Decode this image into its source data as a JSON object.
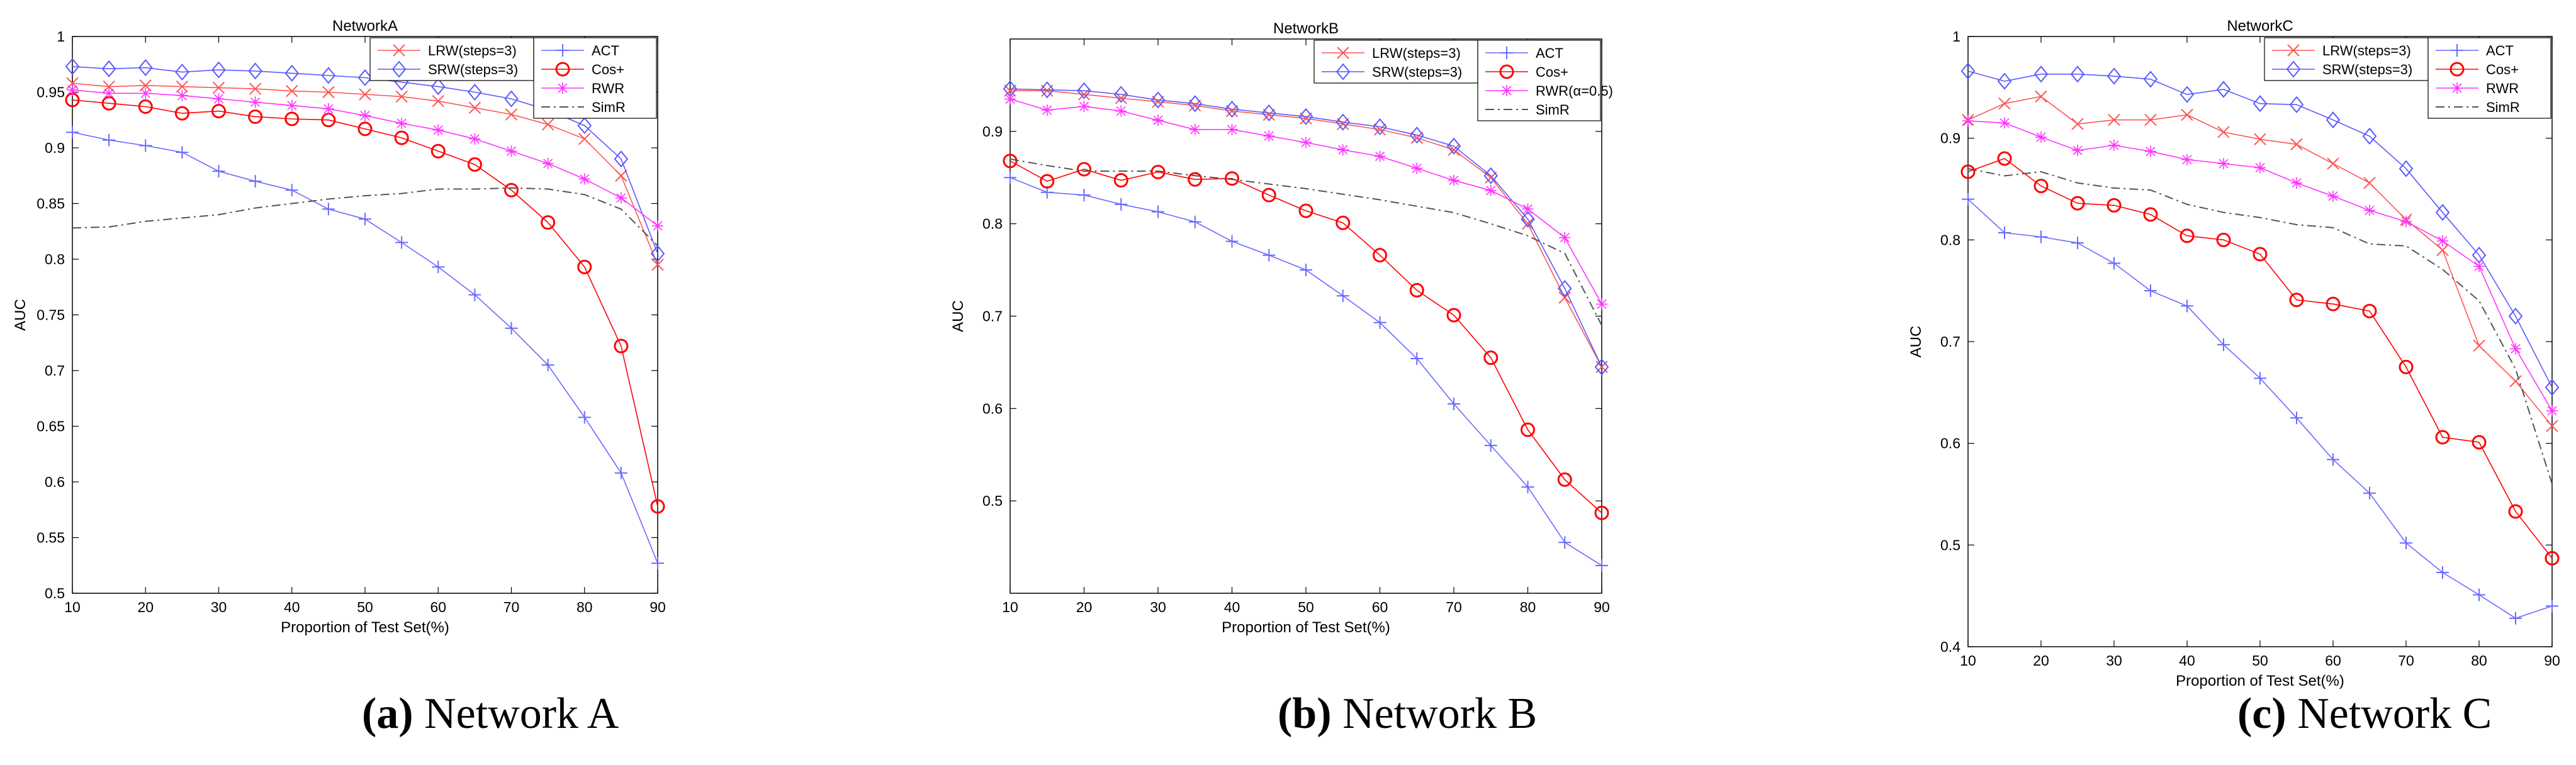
{
  "figure": {
    "captions": [
      {
        "label": "(a)",
        "text": "Network A"
      },
      {
        "label": "(b)",
        "text": "Network B"
      },
      {
        "label": "(c)",
        "text": "Network C"
      }
    ]
  },
  "colors": {
    "LRW": "#ff5555",
    "SRW": "#5a5aff",
    "ACT": "#6a6aff",
    "Cos+": "#ff0000",
    "RWR": "#ff33ff",
    "SimR": "#555555"
  },
  "chart_data": [
    {
      "type": "line",
      "title": "NetworkA",
      "xlabel": "Proportion of Test Set(%)",
      "ylabel": "AUC",
      "x": [
        10,
        15,
        20,
        25,
        30,
        35,
        40,
        45,
        50,
        55,
        60,
        65,
        70,
        75,
        80,
        85,
        90
      ],
      "xticks": [
        10,
        20,
        30,
        40,
        50,
        60,
        70,
        80,
        90
      ],
      "xlim": [
        10,
        90
      ],
      "ylim": [
        0.5,
        1
      ],
      "yticks": [
        0.5,
        0.55,
        0.6,
        0.65,
        0.7,
        0.75,
        0.8,
        0.85,
        0.9,
        0.95,
        1
      ],
      "legend_left": [
        "LRW(steps=3)",
        "SRW(steps=3)"
      ],
      "legend_right": [
        "ACT",
        "Cos+",
        "RWR",
        "SimR"
      ],
      "series": [
        {
          "name": "LRW(steps=3)",
          "marker": "x",
          "values": [
            0.958,
            0.955,
            0.956,
            0.955,
            0.954,
            0.953,
            0.951,
            0.95,
            0.948,
            0.946,
            0.942,
            0.936,
            0.93,
            0.921,
            0.908,
            0.875,
            0.795
          ]
        },
        {
          "name": "SRW(steps=3)",
          "marker": "diamond",
          "values": [
            0.973,
            0.971,
            0.972,
            0.968,
            0.97,
            0.969,
            0.967,
            0.965,
            0.963,
            0.959,
            0.955,
            0.95,
            0.944,
            0.934,
            0.92,
            0.89,
            0.805
          ]
        },
        {
          "name": "ACT",
          "marker": "plus",
          "values": [
            0.914,
            0.907,
            0.902,
            0.896,
            0.879,
            0.87,
            0.862,
            0.845,
            0.836,
            0.815,
            0.793,
            0.768,
            0.738,
            0.705,
            0.658,
            0.608,
            0.527
          ]
        },
        {
          "name": "Cos+",
          "marker": "circle",
          "values": [
            0.943,
            0.94,
            0.937,
            0.931,
            0.933,
            0.928,
            0.926,
            0.925,
            0.917,
            0.909,
            0.897,
            0.885,
            0.862,
            0.833,
            0.793,
            0.722,
            0.578
          ]
        },
        {
          "name": "RWR",
          "marker": "star",
          "values": [
            0.952,
            0.949,
            0.949,
            0.947,
            0.944,
            0.941,
            0.938,
            0.935,
            0.929,
            0.922,
            0.916,
            0.908,
            0.897,
            0.886,
            0.872,
            0.855,
            0.83
          ]
        },
        {
          "name": "SimR",
          "marker": "none",
          "dash": "dashdot",
          "values": [
            0.828,
            0.829,
            0.834,
            0.837,
            0.84,
            0.846,
            0.85,
            0.854,
            0.857,
            0.859,
            0.863,
            0.863,
            0.864,
            0.863,
            0.858,
            0.845,
            0.812
          ]
        }
      ]
    },
    {
      "type": "line",
      "title": "NetworkB",
      "xlabel": "Proportion of Test Set(%)",
      "ylabel": "AUC",
      "x": [
        10,
        15,
        20,
        25,
        30,
        35,
        40,
        45,
        50,
        55,
        60,
        65,
        70,
        75,
        80,
        85,
        90
      ],
      "xticks": [
        10,
        20,
        30,
        40,
        50,
        60,
        70,
        80,
        90
      ],
      "xlim": [
        10,
        90
      ],
      "ylim": [
        0.4,
        1
      ],
      "yticks": [
        0.5,
        0.6,
        0.7,
        0.8,
        0.9
      ],
      "legend_left": [
        "LRW(steps=3)",
        "SRW(steps=3)"
      ],
      "legend_right": [
        "ACT",
        "Cos+",
        "RWR(α=0.5)",
        "SimR"
      ],
      "series": [
        {
          "name": "LRW(steps=3)",
          "marker": "x",
          "values": [
            0.944,
            0.944,
            0.94,
            0.936,
            0.932,
            0.928,
            0.922,
            0.918,
            0.914,
            0.908,
            0.902,
            0.893,
            0.88,
            0.85,
            0.8,
            0.72,
            0.645
          ]
        },
        {
          "name": "SRW(steps=3)",
          "marker": "diamond",
          "values": [
            0.946,
            0.945,
            0.944,
            0.94,
            0.934,
            0.93,
            0.924,
            0.92,
            0.916,
            0.91,
            0.905,
            0.896,
            0.884,
            0.852,
            0.805,
            0.73,
            0.645
          ]
        },
        {
          "name": "ACT",
          "marker": "plus",
          "values": [
            0.85,
            0.834,
            0.831,
            0.821,
            0.813,
            0.802,
            0.781,
            0.766,
            0.75,
            0.722,
            0.693,
            0.654,
            0.605,
            0.56,
            0.515,
            0.455,
            0.43
          ]
        },
        {
          "name": "Cos+",
          "marker": "circle",
          "values": [
            0.868,
            0.846,
            0.859,
            0.847,
            0.856,
            0.848,
            0.849,
            0.831,
            0.814,
            0.801,
            0.766,
            0.728,
            0.701,
            0.655,
            0.577,
            0.523,
            0.487
          ]
        },
        {
          "name": "RWR(α=0.5)",
          "marker": "star",
          "values": [
            0.935,
            0.923,
            0.927,
            0.922,
            0.912,
            0.902,
            0.902,
            0.895,
            0.888,
            0.88,
            0.873,
            0.86,
            0.847,
            0.836,
            0.816,
            0.785,
            0.713
          ]
        },
        {
          "name": "SimR",
          "marker": "none",
          "dash": "dashdot",
          "values": [
            0.87,
            0.863,
            0.857,
            0.857,
            0.857,
            0.852,
            0.848,
            0.843,
            0.838,
            0.832,
            0.826,
            0.819,
            0.812,
            0.8,
            0.787,
            0.768,
            0.69
          ]
        }
      ]
    },
    {
      "type": "line",
      "title": "NetworkC",
      "xlabel": "Proportion of Test Set(%)",
      "ylabel": "AUC",
      "x": [
        10,
        15,
        20,
        25,
        30,
        35,
        40,
        45,
        50,
        55,
        60,
        65,
        70,
        75,
        80,
        85,
        90
      ],
      "xticks": [
        10,
        20,
        30,
        40,
        50,
        60,
        70,
        80,
        90
      ],
      "xlim": [
        10,
        90
      ],
      "ylim": [
        0.4,
        1
      ],
      "yticks": [
        0.4,
        0.5,
        0.6,
        0.7,
        0.8,
        0.9,
        1
      ],
      "legend_left": [
        "LRW(steps=3)",
        "SRW(steps=3)"
      ],
      "legend_right": [
        "ACT",
        "Cos+",
        "RWR",
        "SimR"
      ],
      "series": [
        {
          "name": "LRW(steps=3)",
          "marker": "x",
          "values": [
            0.918,
            0.934,
            0.941,
            0.914,
            0.918,
            0.918,
            0.923,
            0.906,
            0.899,
            0.894,
            0.875,
            0.856,
            0.82,
            0.79,
            0.696,
            0.661,
            0.617
          ]
        },
        {
          "name": "SRW(steps=3)",
          "marker": "diamond",
          "values": [
            0.966,
            0.956,
            0.963,
            0.963,
            0.961,
            0.958,
            0.943,
            0.948,
            0.934,
            0.933,
            0.918,
            0.902,
            0.87,
            0.827,
            0.785,
            0.725,
            0.655
          ]
        },
        {
          "name": "ACT",
          "marker": "plus",
          "values": [
            0.84,
            0.807,
            0.803,
            0.797,
            0.777,
            0.75,
            0.735,
            0.697,
            0.664,
            0.625,
            0.584,
            0.551,
            0.502,
            0.473,
            0.451,
            0.428,
            0.44
          ]
        },
        {
          "name": "Cos+",
          "marker": "circle",
          "values": [
            0.867,
            0.88,
            0.853,
            0.836,
            0.834,
            0.825,
            0.804,
            0.8,
            0.786,
            0.741,
            0.737,
            0.73,
            0.675,
            0.606,
            0.601,
            0.533,
            0.487
          ]
        },
        {
          "name": "RWR",
          "marker": "star",
          "values": [
            0.917,
            0.915,
            0.901,
            0.888,
            0.893,
            0.887,
            0.879,
            0.875,
            0.871,
            0.856,
            0.843,
            0.829,
            0.818,
            0.799,
            0.774,
            0.693,
            0.632
          ]
        },
        {
          "name": "SimR",
          "marker": "none",
          "dash": "dashdot",
          "values": [
            0.87,
            0.863,
            0.867,
            0.856,
            0.851,
            0.849,
            0.835,
            0.827,
            0.822,
            0.815,
            0.812,
            0.796,
            0.794,
            0.771,
            0.74,
            0.673,
            0.56
          ]
        }
      ]
    }
  ]
}
